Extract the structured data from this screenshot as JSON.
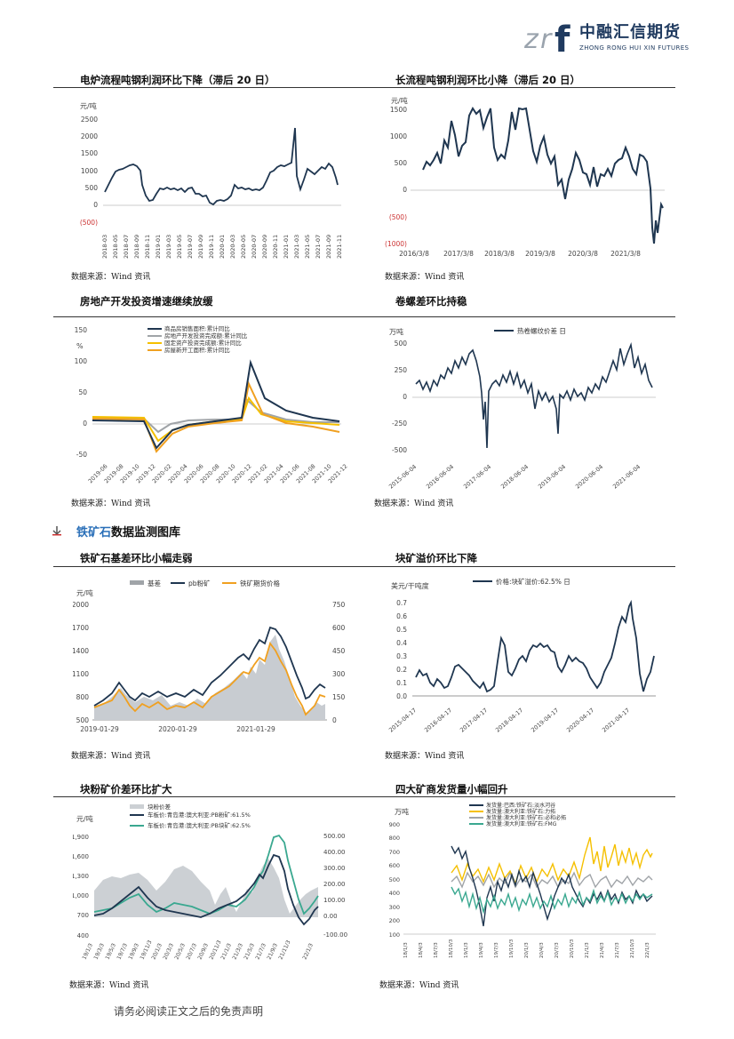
{
  "header": {
    "logo_cn": "中融汇信期货",
    "logo_en": "ZHONG RONG HUI XIN FUTURES",
    "logo_mark": "zrf"
  },
  "section": {
    "bullet_icon": "arrow-bullet-icon",
    "title_highlight": "铁矿石",
    "title_rest": "数据监测图库"
  },
  "footer": {
    "disclaimer": "请务必阅读正文之后的免责声明"
  },
  "source_text": "数据来源：Wind 资讯",
  "charts": {
    "c1": {
      "title": "电炉流程吨钢利润环比下降（滞后 20 日）",
      "unit": "元/吨",
      "y_ticks": [
        "2500",
        "2000",
        "1500",
        "1000",
        "500",
        "0",
        "(500)"
      ],
      "x_ticks": [
        "2018-03",
        "2018-05",
        "2018-07",
        "2018-09",
        "2018-11",
        "2019-01",
        "2019-03",
        "2019-05",
        "2019-07",
        "2019-09",
        "2019-11",
        "2020-01",
        "2020-03",
        "2020-05",
        "2020-07",
        "2020-09",
        "2020-11",
        "2021-01",
        "2021-03",
        "2021-05",
        "2021-07",
        "2021-09",
        "2021-11"
      ]
    },
    "c2": {
      "title": "长流程吨钢利润环比小降（滞后 20 日）",
      "unit": "元/吨",
      "y_ticks": [
        "1500",
        "1000",
        "500",
        "0",
        "(500)",
        "(1000)"
      ],
      "x_ticks": [
        "2016/3/8",
        "2017/3/8",
        "2018/3/8",
        "2019/3/8",
        "2020/3/8",
        "2021/3/8"
      ]
    },
    "c3": {
      "title": "房地产开发投资增速继续放缓",
      "unit": "%",
      "y_ticks": [
        "150",
        "100",
        "50",
        "0",
        "-50"
      ],
      "x_ticks": [
        "2019-06",
        "2019-08",
        "2019-10",
        "2019-12",
        "2020-02",
        "2020-04",
        "2020-06",
        "2020-08",
        "2020-10",
        "2020-12",
        "2021-02",
        "2021-04",
        "2021-06",
        "2021-08",
        "2021-10",
        "2021-12"
      ],
      "legend": [
        "商品房销售面积:累计同比",
        "房地产开发投资完成额:累计同比",
        "固定资产投资完成额:累计同比",
        "房屋新开工面积:累计同比"
      ]
    },
    "c4": {
      "title": "卷螺差环比持稳",
      "unit": "万吨",
      "y_ticks": [
        "500",
        "250",
        "0",
        "-250",
        "-500"
      ],
      "x_ticks": [
        "2015-06-04",
        "2016-06-04",
        "2017-06-04",
        "2018-06-04",
        "2019-06-04",
        "2020-06-04",
        "2021-06-04"
      ],
      "legend": [
        "热卷螺纹价差 日"
      ]
    },
    "c5": {
      "title": "铁矿石基差环比小幅走弱",
      "unit": "元/吨",
      "y_ticks": [
        "2000",
        "1700",
        "1400",
        "1100",
        "800",
        "500"
      ],
      "y2_ticks": [
        "750",
        "600",
        "450",
        "300",
        "150",
        "0"
      ],
      "x_ticks": [
        "2019-01-29",
        "2020-01-29",
        "2021-01-29"
      ],
      "legend": [
        "基差",
        "pb粉矿",
        "铁矿期货价格"
      ]
    },
    "c6": {
      "title": "块矿溢价环比下降",
      "unit": "美元/干吨度",
      "y_ticks": [
        "0.7",
        "0.6",
        "0.5",
        "0.4",
        "0.3",
        "0.2",
        "0.1",
        "0.0"
      ],
      "x_ticks": [
        "2015-04-17",
        "2016-04-17",
        "2017-04-17",
        "2018-04-17",
        "2019-04-17",
        "2020-04-17",
        "2021-04-17"
      ],
      "legend": [
        "价格:块矿溢价:62.5% 日"
      ]
    },
    "c7": {
      "title": "块粉矿价差环比扩大",
      "unit": "元/吨",
      "y_ticks": [
        "1,900",
        "1,600",
        "1,300",
        "1,000",
        "700",
        "400"
      ],
      "y2_ticks": [
        "500.00",
        "400.00",
        "300.00",
        "200.00",
        "100.00",
        "0.00",
        "-100.00"
      ],
      "x_ticks": [
        "19/1/3",
        "19/3/3",
        "19/5/3",
        "19/7/3",
        "19/9/3",
        "19/11/3",
        "20/1/3",
        "20/3/3",
        "20/5/3",
        "20/7/3",
        "20/9/3",
        "20/11/3",
        "21/1/3",
        "21/3/3",
        "21/5/3",
        "21/7/3",
        "21/9/3",
        "21/11/3",
        "22/1/3"
      ],
      "legend": [
        "块粉价差",
        "车板价:青岛港:澳大利亚:PB粉矿:61.5%",
        "车板价:青岛港:澳大利亚:PB块矿:62.5%"
      ]
    },
    "c8": {
      "title": "四大矿商发货量小幅回升",
      "unit": "万吨",
      "y_ticks": [
        "900",
        "800",
        "700",
        "600",
        "500",
        "400",
        "300",
        "200",
        "100"
      ],
      "x_ticks": [
        "18/1/3",
        "18/4/3",
        "18/7/3",
        "18/10/3",
        "19/1/3",
        "19/4/3",
        "19/7/3",
        "19/10/3",
        "20/1/3",
        "20/4/3",
        "20/7/3",
        "20/10/3",
        "21/1/3",
        "21/4/3",
        "21/7/3",
        "21/10/3",
        "22/1/3"
      ],
      "legend": [
        "发货量:巴西:铁矿石:淡水河谷",
        "发货量:澳大利亚:铁矿石:力拓",
        "发货量:澳大利亚:铁矿石:必和必拓",
        "发货量:澳大利亚:铁矿石:FMG"
      ]
    }
  },
  "colors": {
    "navy": "#1f3650",
    "gray": "#a0a4a8",
    "orange": "#f0a020",
    "yellow": "#f5c000",
    "teal": "#3aa890",
    "lightgray": "#ccd0d4"
  }
}
